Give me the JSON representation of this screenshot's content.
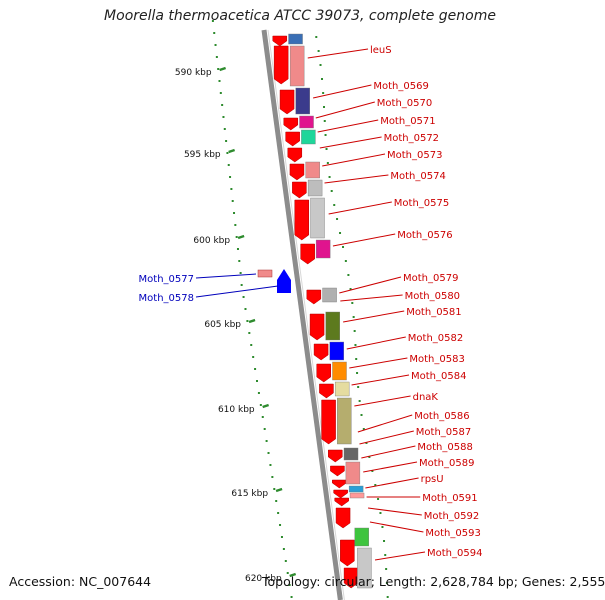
{
  "title": "Moorella thermoacetica ATCC 39073, complete genome",
  "footer": {
    "accession": "Accession: NC_007644",
    "topology": "Topology: circular; Length: 2,628,784 bp; Genes: 2,555"
  },
  "scale_labels": [
    "590 kbp",
    "595 kbp",
    "600 kbp",
    "605 kbp",
    "610 kbp",
    "615 kbp",
    "620 kbp"
  ],
  "colors": {
    "forward_gene": "#ff0000",
    "reverse_gene": "#0000ff",
    "right_label": "#cc0000",
    "left_label": "#0000bb",
    "gc_dots": "#2e8b2e",
    "backbone": "#8c8c8c"
  },
  "genes_right": [
    "leuS",
    "Moth_0569",
    "Moth_0570",
    "Moth_0571",
    "Moth_0572",
    "Moth_0573",
    "Moth_0574",
    "Moth_0575",
    "Moth_0576",
    "Moth_0579",
    "Moth_0580",
    "Moth_0581",
    "Moth_0582",
    "Moth_0583",
    "Moth_0584",
    "dnaK",
    "Moth_0586",
    "Moth_0587",
    "Moth_0588",
    "Moth_0589",
    "rpsU",
    "Moth_0591",
    "Moth_0592",
    "Moth_0593",
    "Moth_0594"
  ],
  "genes_left": [
    "Moth_0577",
    "Moth_0578"
  ]
}
